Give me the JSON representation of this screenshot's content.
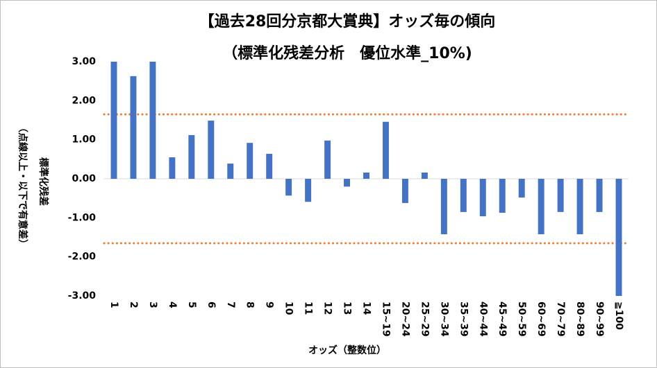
{
  "chart_data": {
    "type": "bar",
    "title": "【過去28回分京都大賞典】オッズ毎の傾向",
    "subtitle": "（標準化残差分析　優位水準_10%)",
    "y_label": "標準化残差",
    "y_label_note": "（点線以上・以下で有意差）",
    "x_label": "オッズ（整数位）",
    "categories": [
      "1",
      "2",
      "3",
      "4",
      "5",
      "6",
      "7",
      "8",
      "9",
      "10",
      "11",
      "12",
      "13",
      "14",
      "15~19",
      "20~24",
      "25~29",
      "30~34",
      "35~39",
      "40~44",
      "45~49",
      "50~59",
      "60~69",
      "70~79",
      "80~89",
      "90~99",
      "≧100"
    ],
    "values": [
      3.0,
      2.63,
      3.0,
      0.55,
      1.12,
      1.49,
      0.39,
      0.92,
      0.64,
      -0.43,
      -0.59,
      0.98,
      -0.2,
      0.16,
      1.46,
      -0.62,
      0.16,
      -1.42,
      -0.85,
      -0.96,
      -0.87,
      -0.48,
      -1.42,
      -0.85,
      -1.42,
      -0.85,
      -3.0
    ],
    "color": "#4472c4",
    "reference_lines": [
      1.65,
      -1.65
    ],
    "reference_color": "#ed7d31",
    "ylim": [
      -3,
      3
    ],
    "yticks": [
      {
        "value": 3,
        "label": "3.00"
      },
      {
        "value": 2,
        "label": "2.00"
      },
      {
        "value": 1,
        "label": "1.00"
      },
      {
        "value": 0,
        "label": "0.00"
      },
      {
        "value": -1,
        "label": "-1.00"
      },
      {
        "value": -2,
        "label": "-2.00"
      },
      {
        "value": -3,
        "label": "-3.00"
      }
    ],
    "grid": false
  }
}
